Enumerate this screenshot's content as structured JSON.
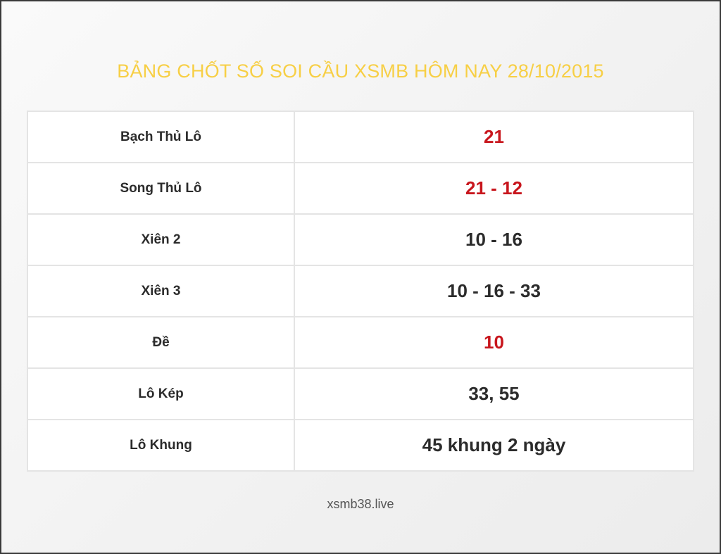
{
  "title": "BẢNG CHỐT SỐ SOI CẦU XSMB HÔM NAY 28/10/2015",
  "colors": {
    "title": "#f7cf45",
    "highlight": "#c8161d",
    "normal": "#2b2b2b"
  },
  "rows": [
    {
      "label": "Bạch Thủ Lô",
      "value": "21",
      "color": "#c8161d"
    },
    {
      "label": "Song Thủ Lô",
      "value": "21 - 12",
      "color": "#c8161d"
    },
    {
      "label": "Xiên 2",
      "value": "10 - 16",
      "color": "#2b2b2b"
    },
    {
      "label": "Xiên 3",
      "value": "10 - 16 - 33",
      "color": "#2b2b2b"
    },
    {
      "label": "Đề",
      "value": "10",
      "color": "#c8161d"
    },
    {
      "label": "Lô Kép",
      "value": "33, 55",
      "color": "#2b2b2b"
    },
    {
      "label": "Lô Khung",
      "value": "45 khung 2 ngày",
      "color": "#2b2b2b"
    }
  ],
  "footer": "xsmb38.live"
}
